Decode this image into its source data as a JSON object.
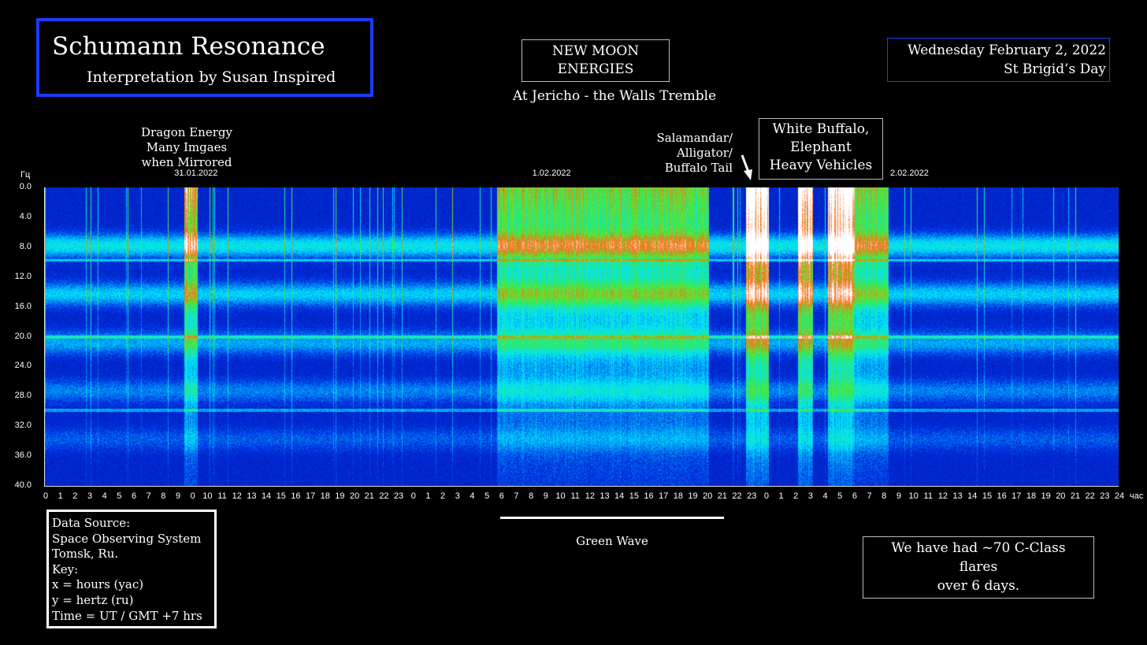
{
  "header": {
    "title": "Schumann Resonance",
    "subtitle": "Interpretation by Susan Inspired",
    "moon_lines": [
      "NEW MOON",
      "ENERGIES"
    ],
    "tagline": "At Jericho - the Walls Tremble",
    "date_lines": [
      "Wednesday February 2, 2022",
      "St Brigid’s Day"
    ]
  },
  "annotations": {
    "dragon_lines": [
      "Dragon Energy",
      "Many Imgaes",
      "when Mirrored"
    ],
    "salamander_lines": [
      "Salamandar/",
      "Alligator/",
      "Buffalo Tail"
    ],
    "buffalo_lines": [
      "White Buffalo,",
      "Elephant",
      "Heavy Vehicles"
    ],
    "green_wave": "Green Wave",
    "flare_lines": [
      "We have had ~70 C-Class",
      "flares",
      "over 6 days."
    ]
  },
  "source_box": {
    "lines": [
      "Data Source:",
      "Space Observing System",
      "Tomsk, Ru.",
      "Key:",
      "x = hours (yac)",
      "y = hertz (ru)",
      "Time = UT / GMT +7 hrs"
    ]
  },
  "colors": {
    "title_border": "#1a3cff",
    "spectrogram_low": "#0012b0",
    "spectrogram_mid": "#00d0ff",
    "spectrogram_high": "#40ff40",
    "spectrogram_peak": "#ff3000",
    "spectrogram_max": "#ffffff"
  },
  "chart_data": {
    "type": "heatmap",
    "title": "",
    "ylabel": "Гц",
    "xlabel": "час",
    "ylim": [
      0,
      40
    ],
    "y_ticks": [
      "0.0",
      "4.0",
      "8.0",
      "12.0",
      "16.0",
      "20.0",
      "24.0",
      "28.0",
      "32.0",
      "36.0",
      "40.0"
    ],
    "x_ticks": [
      "0",
      "1",
      "2",
      "3",
      "4",
      "5",
      "6",
      "7",
      "8",
      "9",
      "0",
      "10",
      "11",
      "12",
      "13",
      "14",
      "15",
      "16",
      "17",
      "18",
      "19",
      "20",
      "21",
      "22",
      "23",
      "0",
      "1",
      "2",
      "3",
      "4",
      "5",
      "6",
      "7",
      "8",
      "9",
      "10",
      "11",
      "12",
      "13",
      "14",
      "15",
      "16",
      "17",
      "18",
      "19",
      "20",
      "21",
      "22",
      "23",
      "0",
      "1",
      "2",
      "3",
      "4",
      "5",
      "6",
      "7",
      "8",
      "9",
      "10",
      "11",
      "12",
      "13",
      "14",
      "15",
      "16",
      "17",
      "18",
      "19",
      "20",
      "21",
      "22",
      "23",
      "24"
    ],
    "day_labels": [
      {
        "text": "31.01.2022",
        "hour": 10
      },
      {
        "text": "1.02.2022",
        "hour": 34
      },
      {
        "text": "2.02.2022",
        "hour": 58
      }
    ],
    "resonance_bands_hz": [
      7.8,
      14.3,
      20.8,
      27.3,
      33.8
    ],
    "bursts": [
      {
        "start_hour": 9.3,
        "end_hour": 10.2,
        "level": "high"
      },
      {
        "start_hour": 30.3,
        "end_hour": 44.5,
        "level": "medium"
      },
      {
        "start_hour": 47.0,
        "end_hour": 48.5,
        "level": "max"
      },
      {
        "start_hour": 50.5,
        "end_hour": 51.5,
        "level": "max"
      },
      {
        "start_hour": 52.5,
        "end_hour": 54.3,
        "level": "max"
      },
      {
        "start_hour": 54.3,
        "end_hour": 56.5,
        "level": "medium"
      }
    ]
  }
}
